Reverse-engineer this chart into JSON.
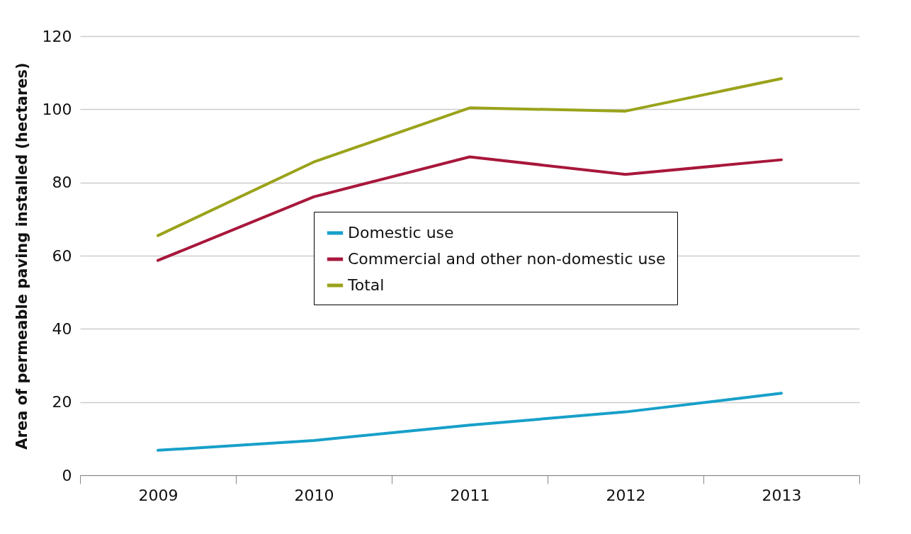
{
  "chart_data": {
    "type": "line",
    "ylabel": "Area of permeable paving installed (hectares)",
    "categories": [
      "2009",
      "2010",
      "2011",
      "2012",
      "2013"
    ],
    "series": [
      {
        "name": "Domestic use",
        "color": "#17a0c9",
        "values": [
          6.8,
          9.5,
          13.7,
          17.3,
          22.4
        ]
      },
      {
        "name": "Commercial and other non-domestic use",
        "color": "#a8173b",
        "values": [
          58.7,
          76.1,
          87,
          82.2,
          86.2
        ]
      },
      {
        "name": "Total",
        "color": "#9aa31a",
        "values": [
          65.5,
          85.6,
          100.4,
          99.5,
          108.4
        ]
      }
    ],
    "ylim": [
      0,
      120
    ],
    "yticks": [
      0,
      20,
      40,
      60,
      80,
      100,
      120
    ],
    "grid": "y",
    "legend": "left"
  }
}
